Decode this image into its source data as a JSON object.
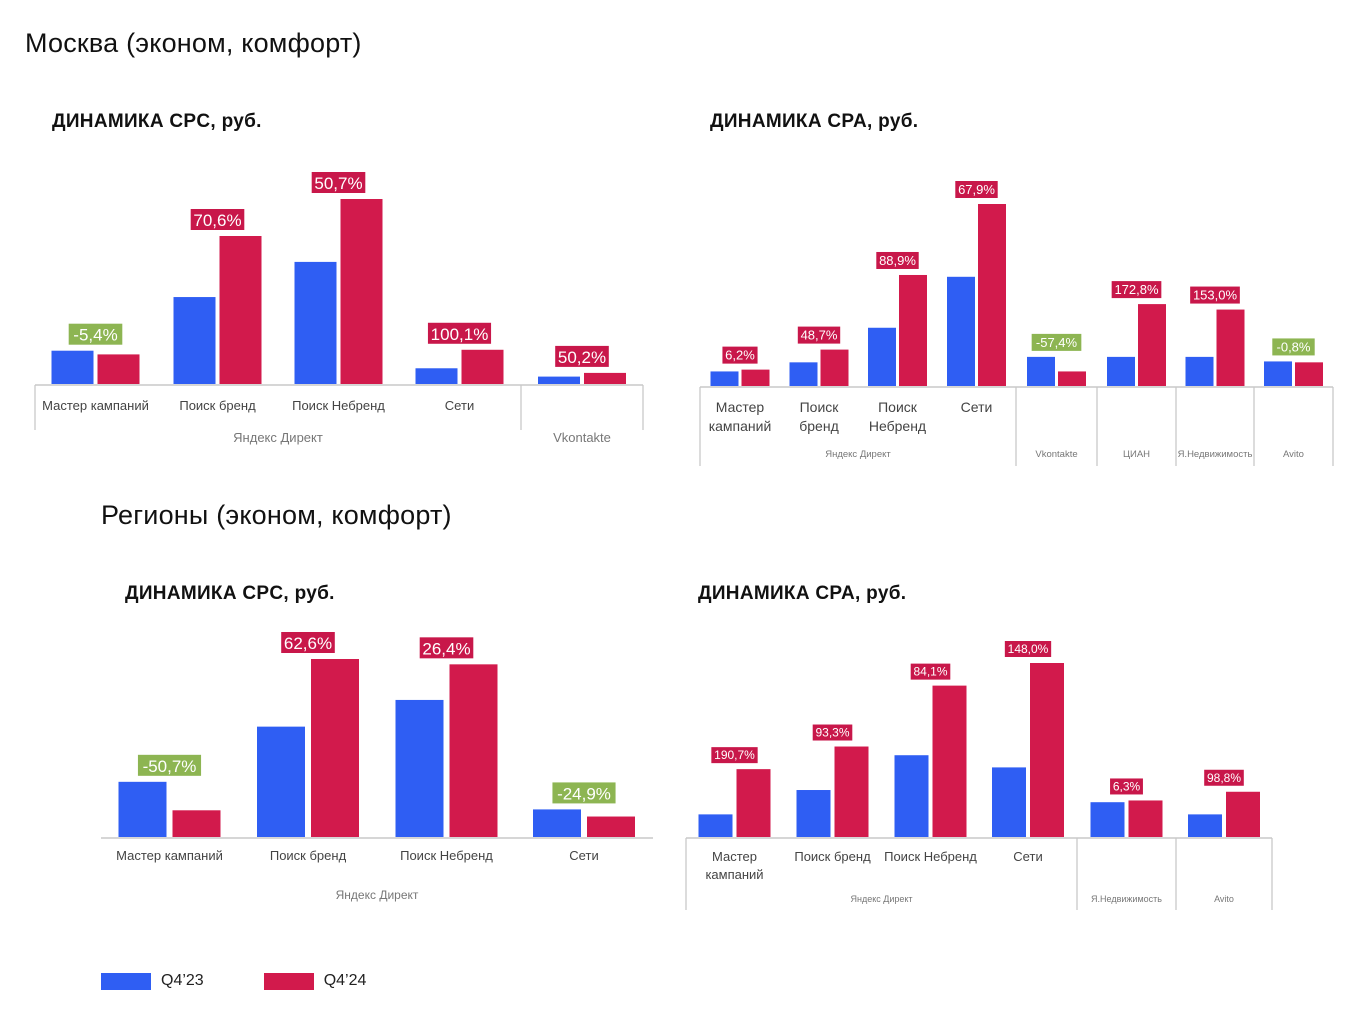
{
  "colors": {
    "q4_23": "#2f5ef3",
    "q4_24": "#d21a4c",
    "pct_positive_bg": "#c8174a",
    "pct_negative_bg": "#8db552",
    "axis": "#c8c8c8",
    "label": "#444444",
    "group_label": "#777777"
  },
  "moscow_title": "Москва (эконом, комфорт)",
  "regions_title": "Регионы (эконом, комфорт)",
  "legend": [
    {
      "label": "Q4’23",
      "series": "q4_23"
    },
    {
      "label": "Q4’24",
      "series": "q4_24"
    }
  ],
  "chart_data": [
    {
      "id": "moscow-cpc",
      "type": "bar",
      "title": "ДИНАМИКА CPC, руб.",
      "series_names": [
        "Q4’23",
        "Q4’24"
      ],
      "ylim": [
        0,
        100
      ],
      "categories": [
        {
          "label": [
            "Мастер кампаний"
          ],
          "values": [
            18,
            16
          ],
          "pct": "-5,4%",
          "sign": "neg"
        },
        {
          "label": [
            "Поиск бренд"
          ],
          "values": [
            47,
            80
          ],
          "pct": "70,6%",
          "sign": "pos"
        },
        {
          "label": [
            "Поиск Небренд"
          ],
          "values": [
            66,
            100
          ],
          "pct": "50,7%",
          "sign": "pos"
        },
        {
          "label": [
            "Сети"
          ],
          "values": [
            8.5,
            18.5
          ],
          "pct": "100,1%",
          "sign": "pos"
        },
        {
          "label": [
            ""
          ],
          "values": [
            4,
            6
          ],
          "pct": "50,2%",
          "sign": "pos"
        }
      ],
      "groups": [
        {
          "label": "Яндекс Директ",
          "start": 0,
          "end": 4
        },
        {
          "label": "Vkontakte",
          "start": 4,
          "end": 5
        }
      ]
    },
    {
      "id": "moscow-cpa",
      "type": "bar",
      "title": "ДИНАМИКА CPA, руб.",
      "series_names": [
        "Q4’23",
        "Q4’24"
      ],
      "ylim": [
        0,
        100
      ],
      "categories": [
        {
          "label": [
            "Мастер",
            "кампаний"
          ],
          "values": [
            8,
            9
          ],
          "pct": "6,2%",
          "sign": "pos"
        },
        {
          "label": [
            "Поиск",
            "бренд"
          ],
          "values": [
            13,
            20
          ],
          "pct": "48,7%",
          "sign": "pos"
        },
        {
          "label": [
            "Поиск",
            "Небренд"
          ],
          "values": [
            32,
            61
          ],
          "pct": "88,9%",
          "sign": "pos"
        },
        {
          "label": [
            "Сети"
          ],
          "values": [
            60,
            100
          ],
          "pct": "67,9%",
          "sign": "pos"
        },
        {
          "label": [
            ""
          ],
          "values": [
            16,
            8
          ],
          "pct": "-57,4%",
          "sign": "neg"
        },
        {
          "label": [
            ""
          ],
          "values": [
            16,
            45
          ],
          "pct": "172,8%",
          "sign": "pos"
        },
        {
          "label": [
            ""
          ],
          "values": [
            16,
            42
          ],
          "pct": "153,0%",
          "sign": "pos"
        },
        {
          "label": [
            ""
          ],
          "values": [
            13.5,
            13
          ],
          "pct": "-0,8%",
          "sign": "neg"
        }
      ],
      "groups": [
        {
          "label": "Яндекс Директ",
          "start": 0,
          "end": 4
        },
        {
          "label": "Vkontakte",
          "start": 4,
          "end": 5
        },
        {
          "label": "ЦИАН",
          "start": 5,
          "end": 6
        },
        {
          "label": "Я.Недвижимость",
          "start": 6,
          "end": 7
        },
        {
          "label": "Avito",
          "start": 7,
          "end": 8
        }
      ]
    },
    {
      "id": "regions-cpc",
      "type": "bar",
      "title": "ДИНАМИКА CPC, руб.",
      "series_names": [
        "Q4’23",
        "Q4’24"
      ],
      "ylim": [
        0,
        100
      ],
      "categories": [
        {
          "label": [
            "Мастер кампаний"
          ],
          "values": [
            31,
            15
          ],
          "pct": "-50,7%",
          "sign": "neg"
        },
        {
          "label": [
            "Поиск бренд"
          ],
          "values": [
            62,
            100
          ],
          "pct": "62,6%",
          "sign": "pos"
        },
        {
          "label": [
            "Поиск Небренд"
          ],
          "values": [
            77,
            97
          ],
          "pct": "26,4%",
          "sign": "pos"
        },
        {
          "label": [
            "Сети"
          ],
          "values": [
            15.5,
            11.5
          ],
          "pct": "-24,9%",
          "sign": "neg"
        }
      ],
      "groups": [
        {
          "label": "Яндекс Директ",
          "start": 0,
          "end": 4
        }
      ]
    },
    {
      "id": "regions-cpa",
      "type": "bar",
      "title": "ДИНАМИКА CPA, руб.",
      "series_names": [
        "Q4’23",
        "Q4’24"
      ],
      "ylim": [
        0,
        100
      ],
      "categories": [
        {
          "label": [
            "Мастер",
            "кампаний"
          ],
          "values": [
            13,
            39
          ],
          "pct": "190,7%",
          "sign": "pos"
        },
        {
          "label": [
            "Поиск бренд"
          ],
          "values": [
            27,
            52
          ],
          "pct": "93,3%",
          "sign": "pos"
        },
        {
          "label": [
            "Поиск Небренд"
          ],
          "values": [
            47,
            87
          ],
          "pct": "84,1%",
          "sign": "pos"
        },
        {
          "label": [
            "Сети"
          ],
          "values": [
            40,
            100
          ],
          "pct": "148,0%",
          "sign": "pos"
        },
        {
          "label": [
            ""
          ],
          "values": [
            20,
            21
          ],
          "pct": "6,3%",
          "sign": "pos"
        },
        {
          "label": [
            ""
          ],
          "values": [
            13,
            26
          ],
          "pct": "98,8%",
          "sign": "pos"
        }
      ],
      "groups": [
        {
          "label": "Яндекс Директ",
          "start": 0,
          "end": 4
        },
        {
          "label": "Я.Недвижимость",
          "start": 4,
          "end": 5
        },
        {
          "label": "Avito",
          "start": 5,
          "end": 6
        }
      ]
    }
  ]
}
